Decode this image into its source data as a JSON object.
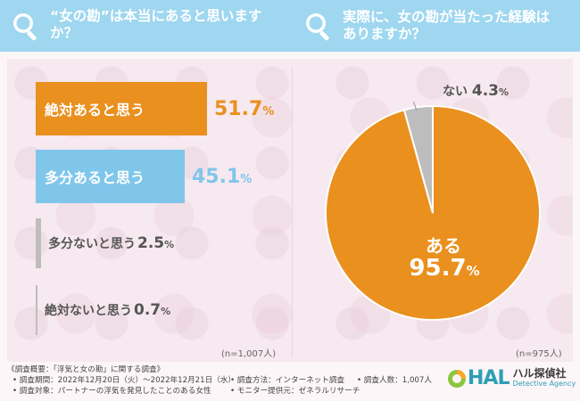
{
  "colors": {
    "header": "#9ed7ef",
    "orange": "#e9901e",
    "blue": "#7fc6ea",
    "gray": "#bdbdbd"
  },
  "questions": {
    "q1": "“女の勘”は本当にあると思いますか？",
    "q2": "実際に、女の勘が当たった経験は\nありますか？"
  },
  "chart_data": [
    {
      "type": "bar",
      "orientation": "horizontal",
      "categories": [
        "絶対あると思う",
        "多分あると思う",
        "多分ないと思う",
        "絶対ないと思う"
      ],
      "values": [
        51.7,
        45.1,
        2.5,
        0.7
      ],
      "value_labels": [
        "51.7",
        "45.1",
        "2.5",
        "0.7"
      ],
      "unit": "%",
      "n_label": "(n=1,007人)"
    },
    {
      "type": "pie",
      "categories": [
        "ある",
        "ない"
      ],
      "values": [
        95.7,
        4.3
      ],
      "value_labels": [
        "95.7",
        "4.3"
      ],
      "unit": "%",
      "n_label": "(n=975人)"
    }
  ],
  "footer": {
    "title": "《調査概要：「浮気と女の勘」に関する調査》",
    "period": "• 調査期間：2022年12月20日（火）～2022年12月21日（水）",
    "target": "• 調査対象：パートナーの浮気を発見したことのある女性",
    "method": "• 調査方法：インターネット調査",
    "monitor": "• モニター提供元：ゼネラルリサーチ",
    "count": "• 調査人数：1,007人"
  },
  "logo": {
    "hal": "HAL",
    "jp": "ハル探偵社",
    "en": "Detective Agency"
  }
}
